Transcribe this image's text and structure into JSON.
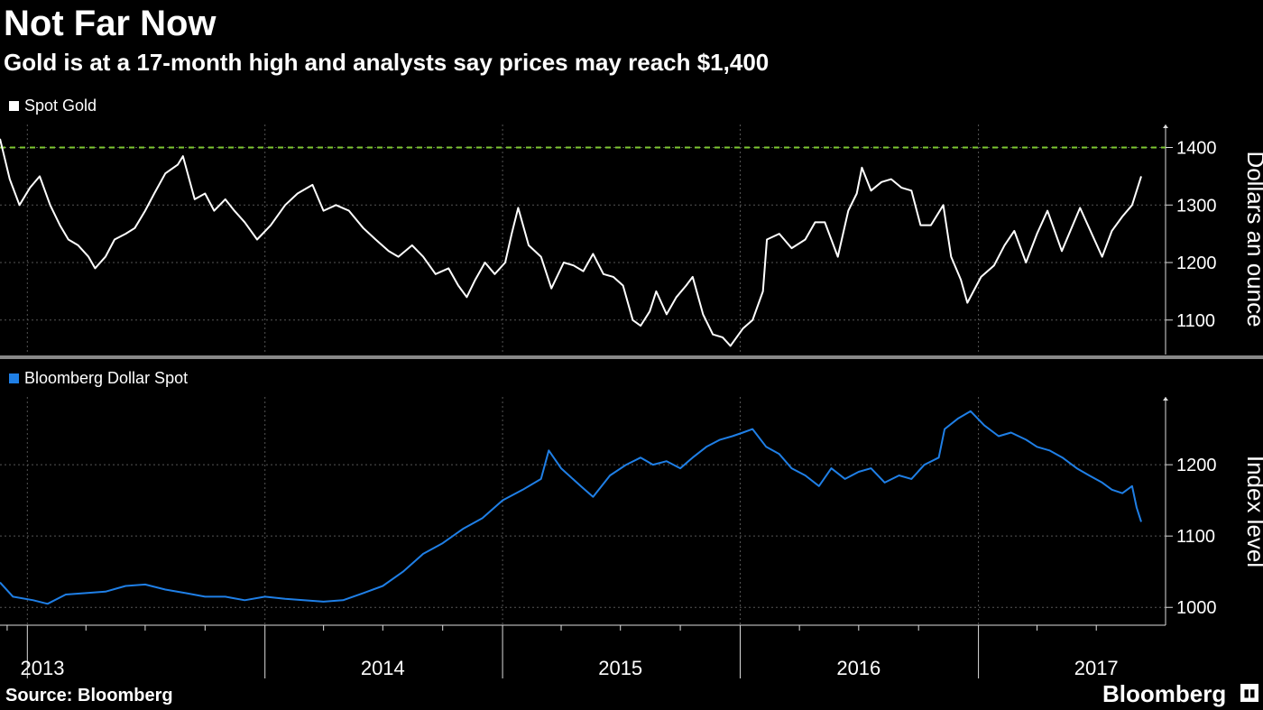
{
  "header": {
    "title": "Not Far Now",
    "subtitle": "Gold is at a 17-month high and analysts say prices may reach $1,400"
  },
  "footer": {
    "source": "Source: Bloomberg",
    "brand": "Bloomberg",
    "brand_icon": "bloomberg-terminal-icon"
  },
  "colors": {
    "gold_line": "#ffffff",
    "dollar_line": "#1f7fe6",
    "reference_line": "#7ec832",
    "grid": "#555555"
  },
  "chart_data": [
    {
      "type": "line",
      "legend": "Spot Gold",
      "ylabel": "Dollars an ounce",
      "ylim": [
        1040,
        1440
      ],
      "yticks": [
        "1400",
        "1300",
        "1200",
        "1100"
      ],
      "reference_line": 1400,
      "x_date_range": [
        "2012-11-20",
        "2017-09-08"
      ],
      "points": [
        [
          "2012-11-20",
          1415
        ],
        [
          "2012-12-05",
          1345
        ],
        [
          "2012-12-20",
          1300
        ],
        [
          "2013-01-05",
          1330
        ],
        [
          "2013-01-20",
          1350
        ],
        [
          "2013-02-05",
          1300
        ],
        [
          "2013-02-20",
          1265
        ],
        [
          "2013-03-05",
          1240
        ],
        [
          "2013-03-20",
          1230
        ],
        [
          "2013-04-05",
          1210
        ],
        [
          "2013-04-15",
          1190
        ],
        [
          "2013-05-01",
          1210
        ],
        [
          "2013-05-15",
          1240
        ],
        [
          "2013-06-01",
          1250
        ],
        [
          "2013-06-15",
          1260
        ],
        [
          "2013-07-01",
          1290
        ],
        [
          "2013-07-15",
          1320
        ],
        [
          "2013-08-01",
          1355
        ],
        [
          "2013-08-20",
          1370
        ],
        [
          "2013-08-28",
          1385
        ],
        [
          "2013-09-15",
          1310
        ],
        [
          "2013-10-01",
          1320
        ],
        [
          "2013-10-15",
          1290
        ],
        [
          "2013-11-01",
          1310
        ],
        [
          "2013-11-15",
          1290
        ],
        [
          "2013-12-01",
          1270
        ],
        [
          "2013-12-20",
          1240
        ],
        [
          "2014-01-10",
          1265
        ],
        [
          "2014-02-01",
          1300
        ],
        [
          "2014-02-20",
          1320
        ],
        [
          "2014-03-15",
          1335
        ],
        [
          "2014-04-01",
          1290
        ],
        [
          "2014-04-20",
          1300
        ],
        [
          "2014-05-10",
          1290
        ],
        [
          "2014-06-01",
          1260
        ],
        [
          "2014-06-20",
          1240
        ],
        [
          "2014-07-10",
          1220
        ],
        [
          "2014-07-25",
          1210
        ],
        [
          "2014-08-15",
          1230
        ],
        [
          "2014-09-01",
          1210
        ],
        [
          "2014-09-20",
          1180
        ],
        [
          "2014-10-10",
          1190
        ],
        [
          "2014-10-25",
          1160
        ],
        [
          "2014-11-07",
          1140
        ],
        [
          "2014-11-20",
          1170
        ],
        [
          "2014-12-05",
          1200
        ],
        [
          "2014-12-20",
          1180
        ],
        [
          "2015-01-05",
          1200
        ],
        [
          "2015-01-15",
          1250
        ],
        [
          "2015-01-25",
          1295
        ],
        [
          "2015-02-10",
          1230
        ],
        [
          "2015-03-01",
          1210
        ],
        [
          "2015-03-17",
          1155
        ],
        [
          "2015-04-05",
          1200
        ],
        [
          "2015-04-20",
          1195
        ],
        [
          "2015-05-05",
          1185
        ],
        [
          "2015-05-20",
          1215
        ],
        [
          "2015-06-05",
          1180
        ],
        [
          "2015-06-20",
          1175
        ],
        [
          "2015-07-05",
          1160
        ],
        [
          "2015-07-20",
          1100
        ],
        [
          "2015-08-01",
          1090
        ],
        [
          "2015-08-15",
          1115
        ],
        [
          "2015-08-25",
          1150
        ],
        [
          "2015-09-10",
          1110
        ],
        [
          "2015-09-25",
          1140
        ],
        [
          "2015-10-10",
          1160
        ],
        [
          "2015-10-20",
          1175
        ],
        [
          "2015-11-05",
          1110
        ],
        [
          "2015-11-20",
          1075
        ],
        [
          "2015-12-05",
          1070
        ],
        [
          "2015-12-17",
          1055
        ],
        [
          "2016-01-05",
          1085
        ],
        [
          "2016-01-20",
          1100
        ],
        [
          "2016-02-05",
          1150
        ],
        [
          "2016-02-11",
          1240
        ],
        [
          "2016-03-01",
          1250
        ],
        [
          "2016-03-20",
          1225
        ],
        [
          "2016-04-10",
          1240
        ],
        [
          "2016-04-25",
          1270
        ],
        [
          "2016-05-10",
          1270
        ],
        [
          "2016-05-30",
          1210
        ],
        [
          "2016-06-15",
          1290
        ],
        [
          "2016-06-28",
          1320
        ],
        [
          "2016-07-06",
          1365
        ],
        [
          "2016-07-20",
          1325
        ],
        [
          "2016-08-05",
          1340
        ],
        [
          "2016-08-20",
          1345
        ],
        [
          "2016-09-05",
          1330
        ],
        [
          "2016-09-20",
          1325
        ],
        [
          "2016-10-04",
          1265
        ],
        [
          "2016-10-20",
          1265
        ],
        [
          "2016-11-08",
          1300
        ],
        [
          "2016-11-20",
          1210
        ],
        [
          "2016-12-05",
          1170
        ],
        [
          "2016-12-15",
          1130
        ],
        [
          "2017-01-05",
          1175
        ],
        [
          "2017-01-25",
          1195
        ],
        [
          "2017-02-10",
          1230
        ],
        [
          "2017-02-25",
          1255
        ],
        [
          "2017-03-15",
          1200
        ],
        [
          "2017-04-01",
          1250
        ],
        [
          "2017-04-17",
          1290
        ],
        [
          "2017-05-09",
          1220
        ],
        [
          "2017-06-06",
          1295
        ],
        [
          "2017-07-10",
          1210
        ],
        [
          "2017-07-25",
          1255
        ],
        [
          "2017-08-10",
          1280
        ],
        [
          "2017-08-25",
          1300
        ],
        [
          "2017-09-08",
          1350
        ]
      ]
    },
    {
      "type": "line",
      "legend": "Bloomberg Dollar Spot",
      "ylabel": "Index level",
      "ylim": [
        975,
        1295
      ],
      "yticks": [
        "1200",
        "1100",
        "1000"
      ],
      "x_date_range": [
        "2012-11-20",
        "2017-09-08"
      ],
      "points": [
        [
          "2012-11-20",
          1035
        ],
        [
          "2012-12-10",
          1015
        ],
        [
          "2013-01-10",
          1010
        ],
        [
          "2013-02-01",
          1005
        ],
        [
          "2013-03-01",
          1018
        ],
        [
          "2013-04-01",
          1020
        ],
        [
          "2013-05-01",
          1022
        ],
        [
          "2013-06-01",
          1030
        ],
        [
          "2013-07-01",
          1032
        ],
        [
          "2013-08-01",
          1025
        ],
        [
          "2013-09-01",
          1020
        ],
        [
          "2013-10-01",
          1015
        ],
        [
          "2013-11-01",
          1015
        ],
        [
          "2013-12-01",
          1010
        ],
        [
          "2014-01-01",
          1015
        ],
        [
          "2014-02-01",
          1012
        ],
        [
          "2014-03-01",
          1010
        ],
        [
          "2014-04-01",
          1008
        ],
        [
          "2014-05-01",
          1010
        ],
        [
          "2014-06-01",
          1020
        ],
        [
          "2014-07-01",
          1030
        ],
        [
          "2014-08-01",
          1050
        ],
        [
          "2014-09-01",
          1075
        ],
        [
          "2014-10-01",
          1090
        ],
        [
          "2014-11-01",
          1110
        ],
        [
          "2014-12-01",
          1125
        ],
        [
          "2015-01-01",
          1150
        ],
        [
          "2015-02-01",
          1165
        ],
        [
          "2015-03-01",
          1180
        ],
        [
          "2015-03-13",
          1220
        ],
        [
          "2015-04-01",
          1195
        ],
        [
          "2015-05-01",
          1170
        ],
        [
          "2015-05-20",
          1155
        ],
        [
          "2015-06-15",
          1185
        ],
        [
          "2015-07-10",
          1200
        ],
        [
          "2015-08-01",
          1210
        ],
        [
          "2015-08-20",
          1200
        ],
        [
          "2015-09-10",
          1205
        ],
        [
          "2015-10-01",
          1195
        ],
        [
          "2015-10-20",
          1210
        ],
        [
          "2015-11-10",
          1225
        ],
        [
          "2015-12-01",
          1235
        ],
        [
          "2015-12-20",
          1240
        ],
        [
          "2016-01-05",
          1245
        ],
        [
          "2016-01-20",
          1250
        ],
        [
          "2016-02-10",
          1225
        ],
        [
          "2016-03-01",
          1215
        ],
        [
          "2016-03-20",
          1195
        ],
        [
          "2016-04-10",
          1185
        ],
        [
          "2016-05-01",
          1170
        ],
        [
          "2016-05-20",
          1195
        ],
        [
          "2016-06-10",
          1180
        ],
        [
          "2016-07-01",
          1190
        ],
        [
          "2016-07-20",
          1195
        ],
        [
          "2016-08-10",
          1175
        ],
        [
          "2016-09-01",
          1185
        ],
        [
          "2016-09-20",
          1180
        ],
        [
          "2016-10-10",
          1200
        ],
        [
          "2016-11-01",
          1210
        ],
        [
          "2016-11-10",
          1250
        ],
        [
          "2016-12-01",
          1265
        ],
        [
          "2016-12-20",
          1275
        ],
        [
          "2017-01-10",
          1255
        ],
        [
          "2017-02-01",
          1240
        ],
        [
          "2017-02-20",
          1245
        ],
        [
          "2017-03-15",
          1235
        ],
        [
          "2017-04-01",
          1225
        ],
        [
          "2017-04-20",
          1220
        ],
        [
          "2017-05-10",
          1210
        ],
        [
          "2017-06-01",
          1195
        ],
        [
          "2017-06-20",
          1185
        ],
        [
          "2017-07-10",
          1175
        ],
        [
          "2017-07-25",
          1165
        ],
        [
          "2017-08-10",
          1160
        ],
        [
          "2017-08-25",
          1170
        ],
        [
          "2017-09-01",
          1140
        ],
        [
          "2017-09-08",
          1120
        ]
      ]
    }
  ],
  "x_axis": {
    "labels": [
      {
        "text": "2013",
        "date": "2013-07-01"
      },
      {
        "text": "2014",
        "date": "2014-07-01"
      },
      {
        "text": "2015",
        "date": "2015-07-01"
      },
      {
        "text": "2016",
        "date": "2016-07-01"
      },
      {
        "text": "2017",
        "date": "2017-07-01"
      }
    ]
  }
}
